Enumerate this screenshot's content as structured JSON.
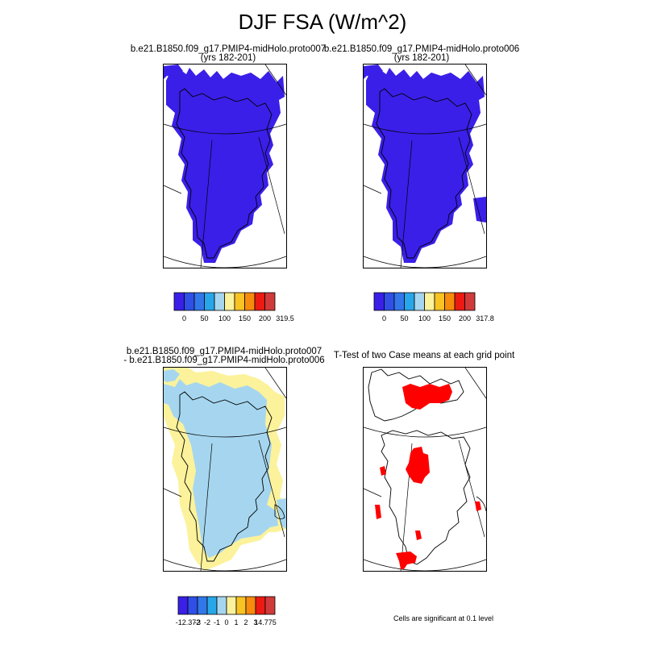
{
  "title": "DJF FSA (W/m^2)",
  "panels": [
    {
      "id": "p1",
      "title_line1": "b.e21.B1850.f09_g17.PMIP4-midHolo.proto007",
      "title_line2": "(yrs 182-201)"
    },
    {
      "id": "p2",
      "title_line1": "b.e21.B1850.f09_g17.PMIP4-midHolo.proto006",
      "title_line2": "(yrs 182-201)"
    },
    {
      "id": "p3",
      "title_line1": "b.e21.B1850.f09_g17.PMIP4-midHolo.proto007",
      "title_line2": "- b.e21.B1850.f09_g17.PMIP4-midHolo.proto006"
    },
    {
      "id": "p4",
      "title_line1": "T-Test of two Case means at each grid point",
      "title_line2": ""
    }
  ],
  "colorbars": [
    {
      "id": "cb1",
      "colors": [
        "#3a1fe8",
        "#2f4fe6",
        "#3177ea",
        "#27a7ea",
        "#a6d6ef",
        "#fbf29b",
        "#f8c323",
        "#f78b0c",
        "#ec1a12",
        "#d13a3a"
      ],
      "tick_labels": [
        "0",
        "50",
        "100",
        "150",
        "200",
        "319.5"
      ]
    },
    {
      "id": "cb2",
      "colors": [
        "#3a1fe8",
        "#2f4fe6",
        "#3177ea",
        "#27a7ea",
        "#a6d6ef",
        "#fbf29b",
        "#f8c323",
        "#f78b0c",
        "#ec1a12",
        "#d13a3a"
      ],
      "tick_labels": [
        "0",
        "50",
        "100",
        "150",
        "200",
        "317.8"
      ]
    },
    {
      "id": "cb3",
      "colors": [
        "#3a1fe8",
        "#2f4fe6",
        "#3177ea",
        "#27a7ea",
        "#a6d6ef",
        "#fbf29b",
        "#f8c323",
        "#f78b0c",
        "#ec1a12",
        "#d13a3a"
      ],
      "tick_labels": [
        "-12.372",
        "-3",
        "-2",
        "-1",
        "0",
        "1",
        "2",
        "3",
        "14.775"
      ]
    }
  ],
  "significance_note": "Cells are significant at 0.1 level",
  "colors": {
    "fsa_field": "#3a1fe8",
    "diff_light_blue": "#a6d6ef",
    "diff_yellow": "#fbf29b",
    "significant": "#ff0000"
  }
}
